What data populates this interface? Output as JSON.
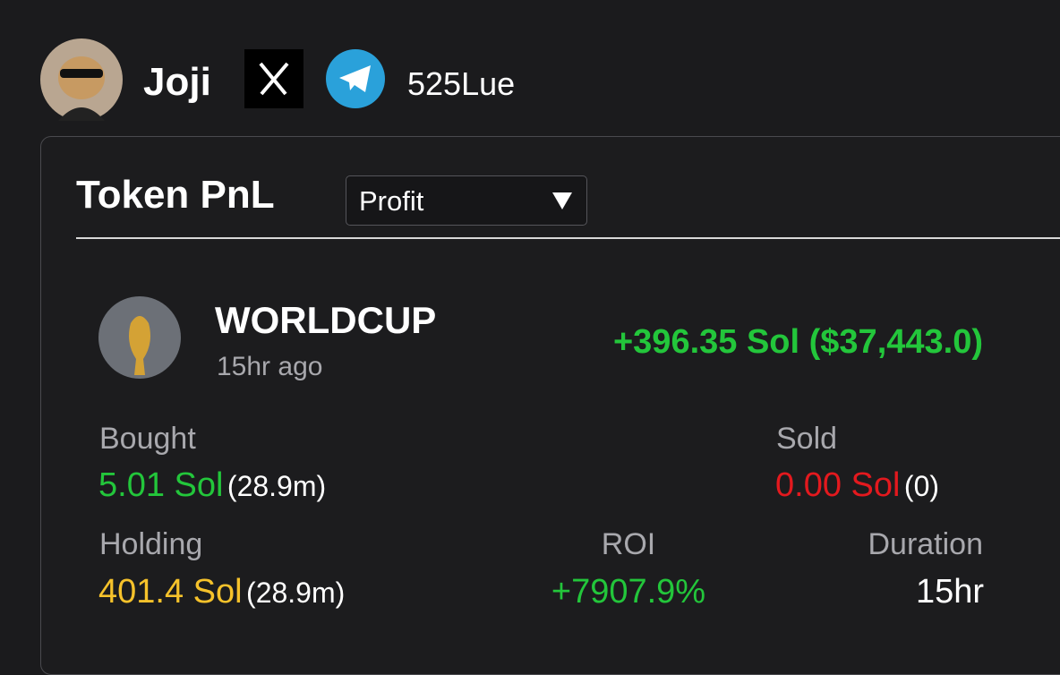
{
  "profile": {
    "name": "Joji",
    "handle": "525Lue"
  },
  "card": {
    "title": "Token PnL",
    "dropdown": "Profit",
    "token": {
      "name": "WORLDCUP",
      "time": "15hr ago",
      "pnl": "+396.35 Sol ($37,443.0)"
    },
    "bought": {
      "label": "Bought",
      "amount": "5.01 Sol",
      "detail": "(28.9m)"
    },
    "sold": {
      "label": "Sold",
      "amount": "0.00 Sol",
      "detail": "(0)"
    },
    "holding": {
      "label": "Holding",
      "amount": "401.4 Sol",
      "detail": "(28.9m)"
    },
    "roi": {
      "label": "ROI",
      "value": "+7907.9%"
    },
    "duration": {
      "label": "Duration",
      "value": "15hr"
    }
  }
}
